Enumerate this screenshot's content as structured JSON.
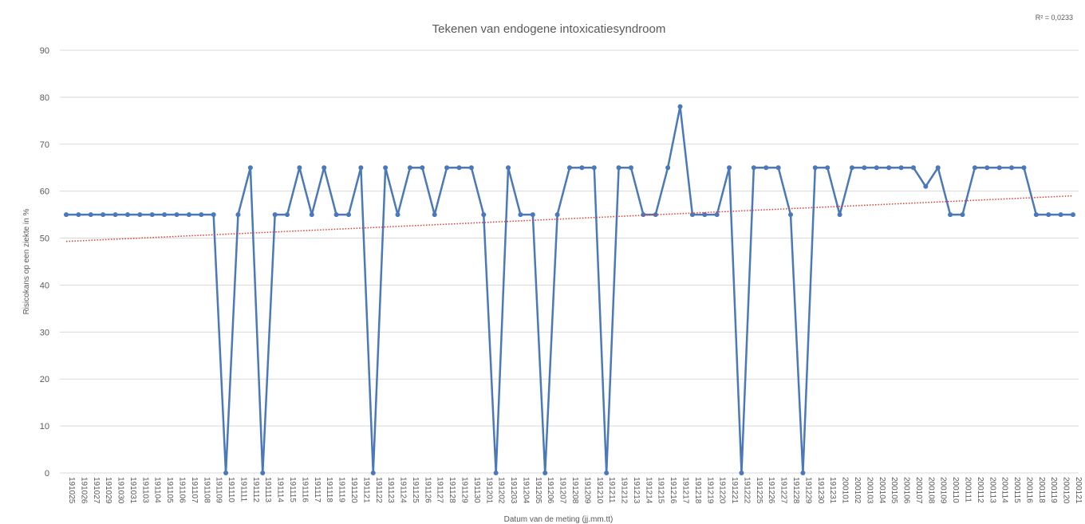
{
  "chart_data": {
    "type": "line",
    "title": "Tekenen van endogene intoxicatiesyndroom",
    "y_label": "Risicokans op een ziekte in %",
    "x_label": "Datum van de meting (jj.mm.tt)",
    "categories": [
      "191025",
      "191026",
      "191027",
      "191029",
      "191030",
      "191031",
      "191103",
      "191104",
      "191105",
      "191106",
      "191107",
      "191108",
      "191109",
      "191110",
      "191111",
      "191112",
      "191113",
      "191114",
      "191115",
      "191116",
      "191117",
      "191118",
      "191119",
      "191120",
      "191121",
      "191122",
      "191123",
      "191124",
      "191125",
      "191126",
      "191127",
      "191128",
      "191129",
      "191130",
      "191201",
      "191202",
      "191203",
      "191204",
      "191205",
      "191206",
      "191207",
      "191208",
      "191209",
      "191210",
      "191211",
      "191212",
      "191213",
      "191214",
      "191215",
      "191216",
      "191217",
      "191218",
      "191219",
      "191220",
      "191221",
      "191222",
      "191225",
      "191226",
      "191227",
      "191228",
      "191229",
      "191230",
      "191231",
      "200101",
      "200102",
      "200103",
      "200104",
      "200105",
      "200106",
      "200107",
      "200108",
      "200109",
      "200110",
      "200111",
      "200112",
      "200113",
      "200114",
      "200115",
      "200116",
      "200118",
      "200119",
      "200120",
      "200121"
    ],
    "series": [
      {
        "name": "Risicokans",
        "color": "#4a78b8",
        "values": [
          55,
          55,
          55,
          55,
          55,
          55,
          55,
          55,
          55,
          55,
          55,
          55,
          55,
          0,
          55,
          65,
          0,
          55,
          55,
          65,
          55,
          65,
          55,
          55,
          65,
          0,
          65,
          55,
          65,
          65,
          55,
          65,
          65,
          65,
          55,
          0,
          65,
          55,
          55,
          0,
          55,
          65,
          65,
          65,
          0,
          65,
          65,
          55,
          55,
          65,
          78,
          55,
          55,
          55,
          65,
          0,
          65,
          65,
          65,
          55,
          0,
          65,
          65,
          55,
          65,
          65,
          65,
          65,
          65,
          65,
          61,
          65,
          55,
          55,
          65,
          65,
          65,
          65,
          65,
          55,
          55,
          55,
          55
        ]
      }
    ],
    "trendline": {
      "values": [
        49.3,
        59
      ],
      "color": "#e03a2e",
      "label": "R² = 0,0233"
    },
    "ylim": [
      0,
      90
    ],
    "yticks": [
      0,
      10,
      20,
      30,
      40,
      50,
      60,
      70,
      80,
      90
    ],
    "grid": true
  }
}
